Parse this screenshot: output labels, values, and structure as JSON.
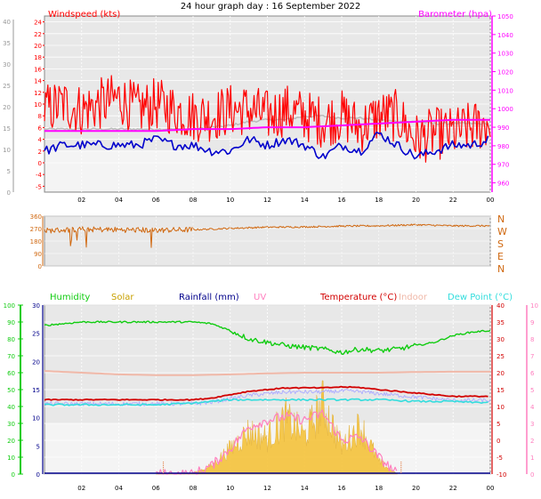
{
  "title": "24 hour graph day : 16 September 2022",
  "colors": {
    "background": "#ffffff",
    "plot_bg": "#e8e8e8",
    "grid": "#ffffff",
    "wind_gust": "#ff0000",
    "wind_avg": "#0000cc",
    "barometer": "#ff00ff",
    "baro_grey": "#bbbbbb",
    "direction": "#d06810",
    "humidity": "#11cc11",
    "solar": "#f5c030",
    "rainfall": "#00008b",
    "uv": "#ff7fbf",
    "temperature": "#d20000",
    "indoor": "#f0b8a8",
    "dewpoint": "#33dddd",
    "feels": "#b0b0ff"
  },
  "x_ticks": [
    "02",
    "04",
    "06",
    "08",
    "10",
    "12",
    "14",
    "16",
    "18",
    "20",
    "22",
    "00"
  ],
  "chart_data": [
    {
      "type": "line",
      "name": "wind_barometer",
      "title": "",
      "left_label": "Windspeed (kts)",
      "right_label": "Barometer (hpa)",
      "ylim": [
        -5,
        25
      ],
      "y2lim": [
        955,
        1050
      ],
      "left_ticks": [
        "-5",
        "-4",
        "0",
        "2",
        "4",
        "6",
        "8",
        "10",
        "12",
        "14",
        "16",
        "18",
        "20",
        "22",
        "24"
      ],
      "outer_left_ticks": [
        "0",
        "5",
        "10",
        "15",
        "20",
        "25",
        "30",
        "35",
        "40"
      ],
      "right_ticks": [
        "960",
        "970",
        "980",
        "990",
        "1000",
        "1010",
        "1020",
        "1030",
        "1040",
        "1050"
      ],
      "series": [
        {
          "name": "Windspeed (kts)",
          "x": [
            0,
            1,
            2,
            3,
            4,
            5,
            6,
            7,
            8,
            9,
            10,
            11,
            12,
            13,
            14,
            15,
            16,
            17,
            18,
            19,
            20,
            21,
            22,
            23,
            24
          ],
          "values": [
            9,
            10,
            9,
            10,
            11,
            9,
            10,
            9,
            8,
            8,
            9,
            9,
            8,
            9,
            8,
            7,
            8,
            6,
            8,
            8,
            4,
            5,
            5,
            6,
            7
          ]
        },
        {
          "name": "Barometer (hpa)",
          "x": [
            0,
            2,
            4,
            6,
            8,
            10,
            12,
            14,
            16,
            18,
            20,
            22,
            24
          ],
          "values": [
            988,
            988,
            988,
            988,
            989,
            989,
            990,
            990,
            991,
            992,
            993,
            994,
            994
          ]
        }
      ]
    },
    {
      "type": "line",
      "name": "wind_direction",
      "ylim": [
        0,
        360
      ],
      "left_ticks": [
        "0",
        "90",
        "180",
        "270",
        "360"
      ],
      "right_labels": [
        "N",
        "W",
        "S",
        "E",
        "N"
      ],
      "series": [
        {
          "name": "Direction",
          "x": [
            0,
            2,
            4,
            6,
            8,
            10,
            12,
            14,
            16,
            18,
            20,
            22,
            24
          ],
          "values": [
            255,
            265,
            262,
            258,
            262,
            272,
            280,
            282,
            288,
            290,
            298,
            290,
            290
          ]
        }
      ]
    },
    {
      "type": "line",
      "name": "temperature_humidity",
      "labels": {
        "humidity": "Humidity",
        "solar": "Solar",
        "rainfall": "Rainfall (mm)",
        "uv": "UV",
        "temperature": "Temperature (°C)",
        "indoor": "Indoor",
        "dewpoint": "Dew Point (°C)"
      },
      "ylim": [
        -10,
        40
      ],
      "outer_left_ticks": [
        "0",
        "10",
        "20",
        "30",
        "40",
        "50",
        "60",
        "70",
        "80",
        "90",
        "100"
      ],
      "left_ticks": [
        "0",
        "5",
        "10",
        "15",
        "20",
        "25",
        "30"
      ],
      "right_ticks": [
        "-10",
        "-5",
        "0",
        "5",
        "10",
        "15",
        "20",
        "25",
        "30",
        "35",
        "40"
      ],
      "far_right_ticks": [
        "0",
        "1",
        "2",
        "3",
        "4",
        "5",
        "6",
        "7",
        "8",
        "9",
        "10"
      ],
      "series": [
        {
          "name": "Humidity",
          "x": [
            0,
            2,
            4,
            6,
            8,
            9,
            10,
            11,
            12,
            13,
            14,
            15,
            16,
            17,
            18,
            19,
            20,
            21,
            22,
            23,
            24
          ],
          "values": [
            88,
            90,
            90,
            90,
            90,
            89,
            85,
            80,
            78,
            76,
            75,
            74,
            72,
            74,
            73,
            74,
            76,
            78,
            82,
            84,
            85
          ]
        },
        {
          "name": "Temperature (°C)",
          "x": [
            0,
            2,
            4,
            6,
            8,
            9,
            10,
            11,
            12,
            13,
            14,
            15,
            16,
            17,
            18,
            19,
            20,
            21,
            22,
            23,
            24
          ],
          "values": [
            12.0,
            12.0,
            12.0,
            12.0,
            12.0,
            12.5,
            13.5,
            14.5,
            15.0,
            15.5,
            15.5,
            15.5,
            15.8,
            15.6,
            15.0,
            14.5,
            14.0,
            13.5,
            13.0,
            13.0,
            13.0
          ]
        },
        {
          "name": "Dew Point (°C)",
          "x": [
            0,
            2,
            4,
            6,
            8,
            9,
            10,
            11,
            12,
            13,
            14,
            15,
            16,
            17,
            18,
            19,
            20,
            21,
            22,
            23,
            24
          ],
          "values": [
            10.5,
            10.5,
            10.5,
            10.5,
            11.0,
            11.5,
            12.0,
            12.0,
            12.0,
            12.0,
            12.0,
            12.0,
            12.0,
            12.0,
            12.0,
            11.8,
            11.5,
            11.5,
            11.5,
            11.2,
            11.2
          ]
        },
        {
          "name": "Indoor",
          "x": [
            0,
            2,
            4,
            6,
            8,
            10,
            12,
            14,
            16,
            18,
            20,
            22,
            24
          ],
          "values": [
            20.5,
            20.0,
            19.5,
            19.3,
            19.3,
            19.5,
            19.8,
            20.0,
            20.0,
            20.0,
            20.2,
            20.3,
            20.3
          ]
        },
        {
          "name": "UV",
          "x": [
            6,
            8,
            9,
            10,
            11,
            12,
            13,
            14,
            15,
            16,
            17,
            18,
            19
          ],
          "values": [
            0,
            0,
            0.5,
            1.5,
            2.8,
            3.2,
            3.4,
            3.2,
            3.6,
            2.0,
            2.2,
            1.0,
            0
          ]
        },
        {
          "name": "Solar",
          "x": [
            6,
            8,
            9,
            10,
            11,
            12,
            13,
            14,
            15,
            16,
            17,
            18,
            19
          ],
          "values": [
            0,
            5,
            40,
            120,
            200,
            170,
            260,
            180,
            330,
            130,
            230,
            60,
            0
          ]
        },
        {
          "name": "Rainfall (mm)",
          "x": [
            0,
            24
          ],
          "values": [
            0,
            0
          ]
        }
      ]
    }
  ]
}
